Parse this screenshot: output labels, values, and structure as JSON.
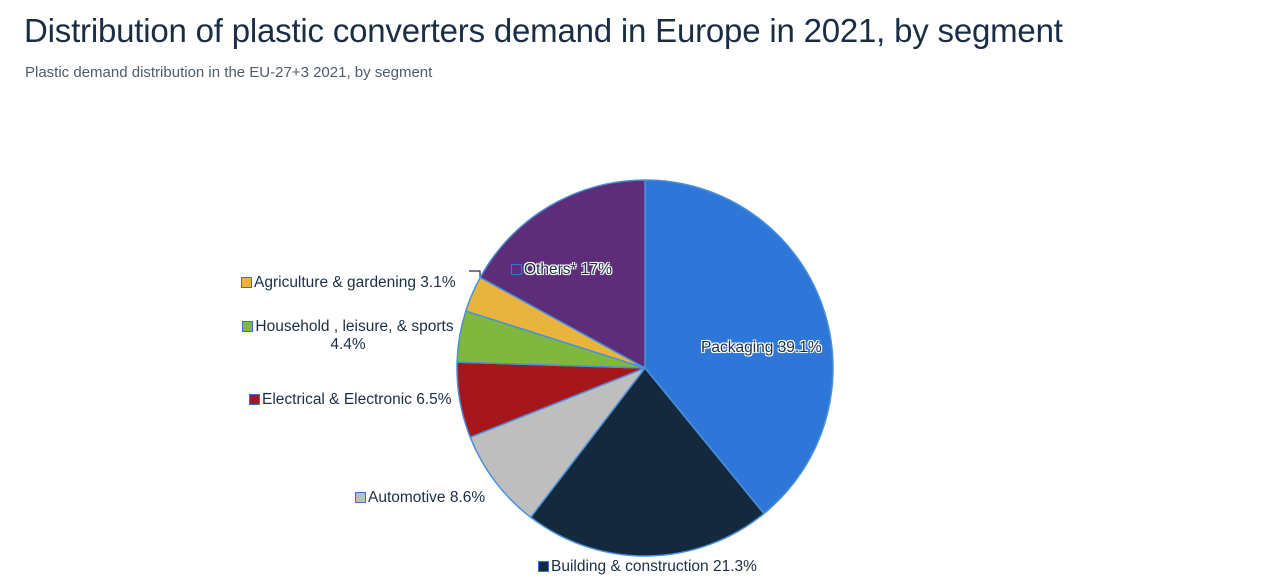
{
  "header": {
    "title": "Distribution of plastic converters demand in Europe in 2021, by segment",
    "subtitle": "Plastic demand distribution in the EU-27+3 2021, by segment"
  },
  "chart_data": {
    "type": "pie",
    "title": "Distribution of plastic converters demand in Europe in 2021, by segment",
    "start_angle_deg": 0,
    "direction": "clockwise",
    "start_position": "12-o-clock",
    "slice_stroke_color": "#4a90d9",
    "label_text_color": "#1c2f45",
    "segments": [
      {
        "label": "Packaging",
        "value": 39.1,
        "display": "Packaging 39.1%",
        "color": "#2e77d8",
        "marker": "none"
      },
      {
        "label": "Building & construction",
        "value": 21.3,
        "display": "Building & construction 21.3%",
        "color": "#15293e",
        "marker": "filled"
      },
      {
        "label": "Automotive",
        "value": 8.6,
        "display": "Automotive 8.6%",
        "color": "#bfbebe",
        "marker": "filled"
      },
      {
        "label": "Electrical & Electronic",
        "value": 6.5,
        "display": "Electrical & Electronic 6.5%",
        "color": "#a6171c",
        "marker": "filled"
      },
      {
        "label": "Household , leisure, & sports",
        "value": 4.4,
        "display": "Household , leisure, & sports 4.4%",
        "color": "#7fb83d",
        "marker": "filled"
      },
      {
        "label": "Agriculture & gardening",
        "value": 3.1,
        "display": "Agriculture & gardening 3.1%",
        "color": "#e9b43e",
        "marker": "filled"
      },
      {
        "label": "Others*",
        "value": 17.0,
        "display": "Others* 17%",
        "color": "#5e2d7a",
        "marker": "open"
      }
    ]
  },
  "colors": {
    "title": "#1b2d44",
    "subtitle": "#4e5c6c",
    "marker_border": "#2e77d8",
    "callout_line": "#1c2f45",
    "background": "#ffffff"
  }
}
